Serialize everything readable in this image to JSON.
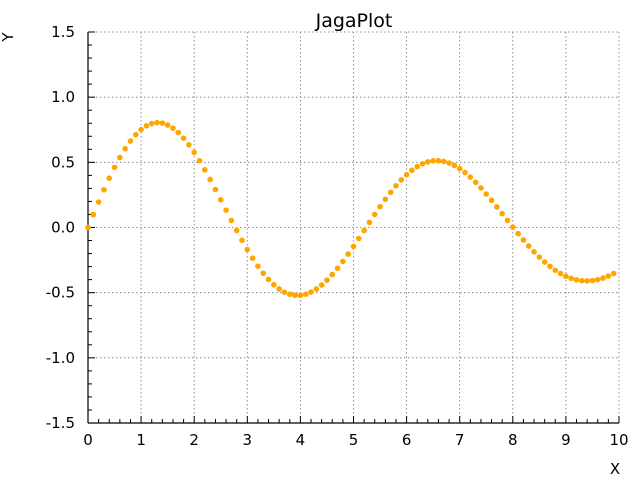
{
  "chart_data": {
    "type": "scatter",
    "title": "JagaPlot",
    "xlabel": "X",
    "ylabel": "Y",
    "xlim": [
      0,
      10
    ],
    "ylim": [
      -1.5,
      1.5
    ],
    "x_ticks": [
      0,
      1,
      2,
      3,
      4,
      5,
      6,
      7,
      8,
      9,
      10
    ],
    "x_tick_labels": [
      "0",
      "1",
      "2",
      "3",
      "4",
      "5",
      "6",
      "7",
      "8",
      "9",
      "10"
    ],
    "y_ticks": [
      -1.5,
      -1.0,
      -0.5,
      0.0,
      0.5,
      1.0,
      1.5
    ],
    "y_tick_labels": [
      "-1.5",
      "-1.0",
      "-0.5",
      "0.0",
      "0.5",
      "1.0",
      "1.5"
    ],
    "grid": true,
    "series": [
      {
        "color": "#FFA500",
        "x": [
          0.0,
          0.1,
          0.2,
          0.3,
          0.4,
          0.5,
          0.6,
          0.7,
          0.8,
          0.9,
          1.0,
          1.1,
          1.2,
          1.3,
          1.4,
          1.5,
          1.6,
          1.7,
          1.8,
          1.9,
          2.0,
          2.1,
          2.2,
          2.3,
          2.4,
          2.5,
          2.6,
          2.7,
          2.8,
          2.9,
          3.0,
          3.1,
          3.2,
          3.3,
          3.4,
          3.5,
          3.6,
          3.7,
          3.8,
          3.9,
          4.0,
          4.1,
          4.2,
          4.3,
          4.4,
          4.5,
          4.6,
          4.7,
          4.8,
          4.9,
          5.0,
          5.1,
          5.2,
          5.3,
          5.4,
          5.5,
          5.6,
          5.7,
          5.8,
          5.9,
          6.0,
          6.1,
          6.2,
          6.3,
          6.4,
          6.5,
          6.6,
          6.7,
          6.8,
          6.9,
          7.0,
          7.1,
          7.2,
          7.3,
          7.4,
          7.5,
          7.6,
          7.7,
          7.8,
          7.9,
          8.0,
          8.1,
          8.2,
          8.3,
          8.4,
          8.5,
          8.6,
          8.7,
          8.8,
          8.9,
          9.0,
          9.1,
          9.2,
          9.3,
          9.4,
          9.5,
          9.6,
          9.7,
          9.8,
          9.9
        ],
        "y": [
          0.0,
          0.0989,
          0.1956,
          0.2894,
          0.3783,
          0.4611,
          0.5369,
          0.6046,
          0.6633,
          0.7124,
          0.7514,
          0.7798,
          0.7975,
          0.8044,
          0.8006,
          0.7864,
          0.7622,
          0.7284,
          0.6857,
          0.6348,
          0.5767,
          0.5122,
          0.4424,
          0.3685,
          0.2916,
          0.2128,
          0.1333,
          0.0542,
          -0.0233,
          -0.0981,
          -0.1692,
          -0.2356,
          -0.2964,
          -0.351,
          -0.3987,
          -0.4391,
          -0.4717,
          -0.4962,
          -0.5124,
          -0.5204,
          -0.5201,
          -0.5117,
          -0.4955,
          -0.4718,
          -0.4411,
          -0.404,
          -0.361,
          -0.3128,
          -0.2603,
          -0.2041,
          -0.1452,
          -0.0844,
          -0.0227,
          0.0392,
          0.1003,
          0.1598,
          0.2168,
          0.2705,
          0.3202,
          0.3653,
          0.4051,
          0.4392,
          0.4671,
          0.4886,
          0.5034,
          0.5113,
          0.5124,
          0.5068,
          0.4946,
          0.476,
          0.4515,
          0.4214,
          0.3864,
          0.3469,
          0.3036,
          0.2571,
          0.2082,
          0.1576,
          0.106,
          0.0542,
          0.003,
          -0.0472,
          -0.0958,
          -0.1424,
          -0.1864,
          -0.2273,
          -0.2648,
          -0.2985,
          -0.3281,
          -0.3534,
          -0.3742,
          -0.3903,
          -0.4016,
          -0.4082,
          -0.41,
          -0.4072,
          -0.3999,
          -0.3883,
          -0.3727,
          -0.3533
        ]
      }
    ]
  }
}
